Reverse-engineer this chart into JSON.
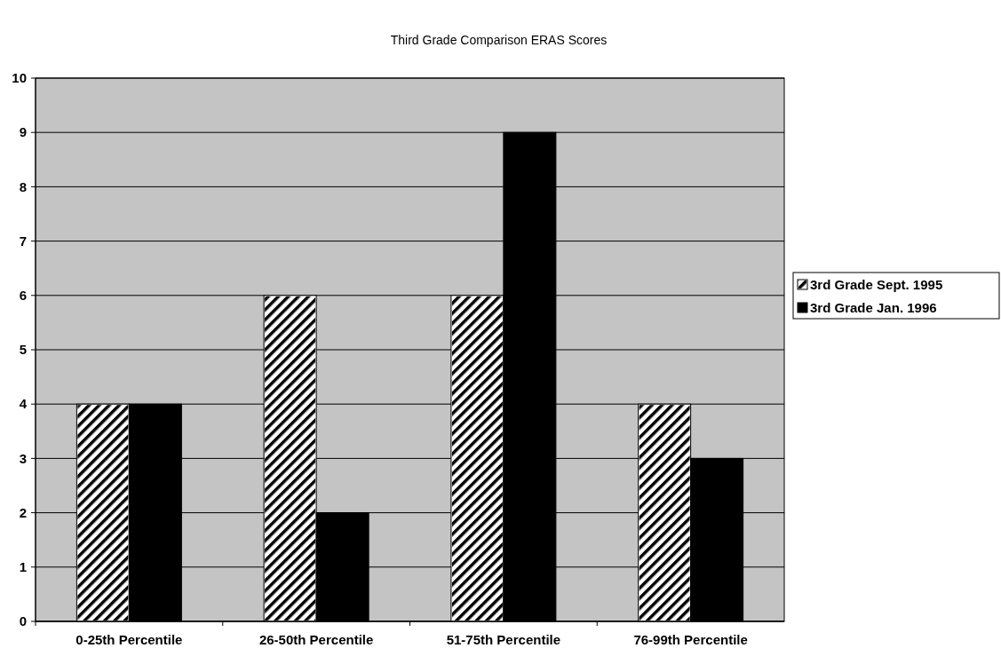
{
  "chart_data": {
    "type": "bar",
    "title": "Third Grade Comparison ERAS Scores",
    "categories": [
      "0-25th Percentile",
      "26-50th Percentile",
      "51-75th Percentile",
      "76-99th Percentile"
    ],
    "series": [
      {
        "name": "3rd Grade Sept. 1995",
        "color": "#ffffff",
        "values": [
          4,
          6,
          6,
          4
        ]
      },
      {
        "name": "3rd Grade Jan. 1996",
        "color": "#000000",
        "values": [
          4,
          2,
          9,
          3
        ]
      }
    ],
    "ylim": [
      0,
      10
    ],
    "yticks": [
      0,
      1,
      2,
      3,
      4,
      5,
      6,
      7,
      8,
      9,
      10
    ],
    "grid": "y",
    "legend": "right"
  }
}
